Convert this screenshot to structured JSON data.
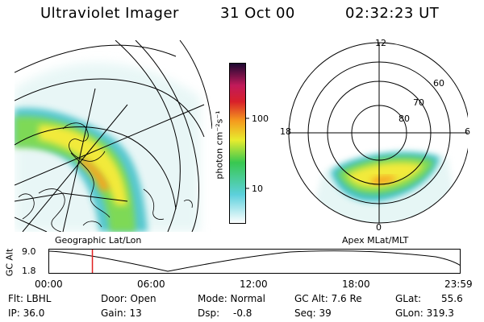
{
  "header": {
    "title": "Ultraviolet Imager",
    "date": "31 Oct 00",
    "time": "02:32:23 UT"
  },
  "colorbar": {
    "unit_label": "photon cm⁻²s⁻¹",
    "ticks": [
      "100",
      "10"
    ]
  },
  "polar_plot": {
    "mlt_labels": [
      "12",
      "18",
      "6",
      "0"
    ],
    "lat_labels": [
      "60",
      "70",
      "80"
    ]
  },
  "timeline": {
    "left_label": "Geographic Lat/Lon",
    "right_label": "Apex MLat/MLT",
    "axis_title": "GC Alt",
    "y_ticks": [
      "9.0",
      "1.8"
    ],
    "x_ticks": [
      "00:00",
      "06:00",
      "12:00",
      "18:00",
      "23:59"
    ],
    "current_time_fraction": 0.105
  },
  "info": {
    "filter": "Flt: LBHL",
    "ip": "IP: 36.0",
    "door": "Door: Open",
    "gain": "Gain: 13",
    "mode": "Mode: Normal",
    "dsp": "Dsp:",
    "dsp_val": "-0.8",
    "gc_alt": "GC Alt: 7.6 Re",
    "seq": "Seq: 39",
    "glat": "GLat:",
    "glat_val": "55.6",
    "glon": "GLon: 319.3"
  }
}
